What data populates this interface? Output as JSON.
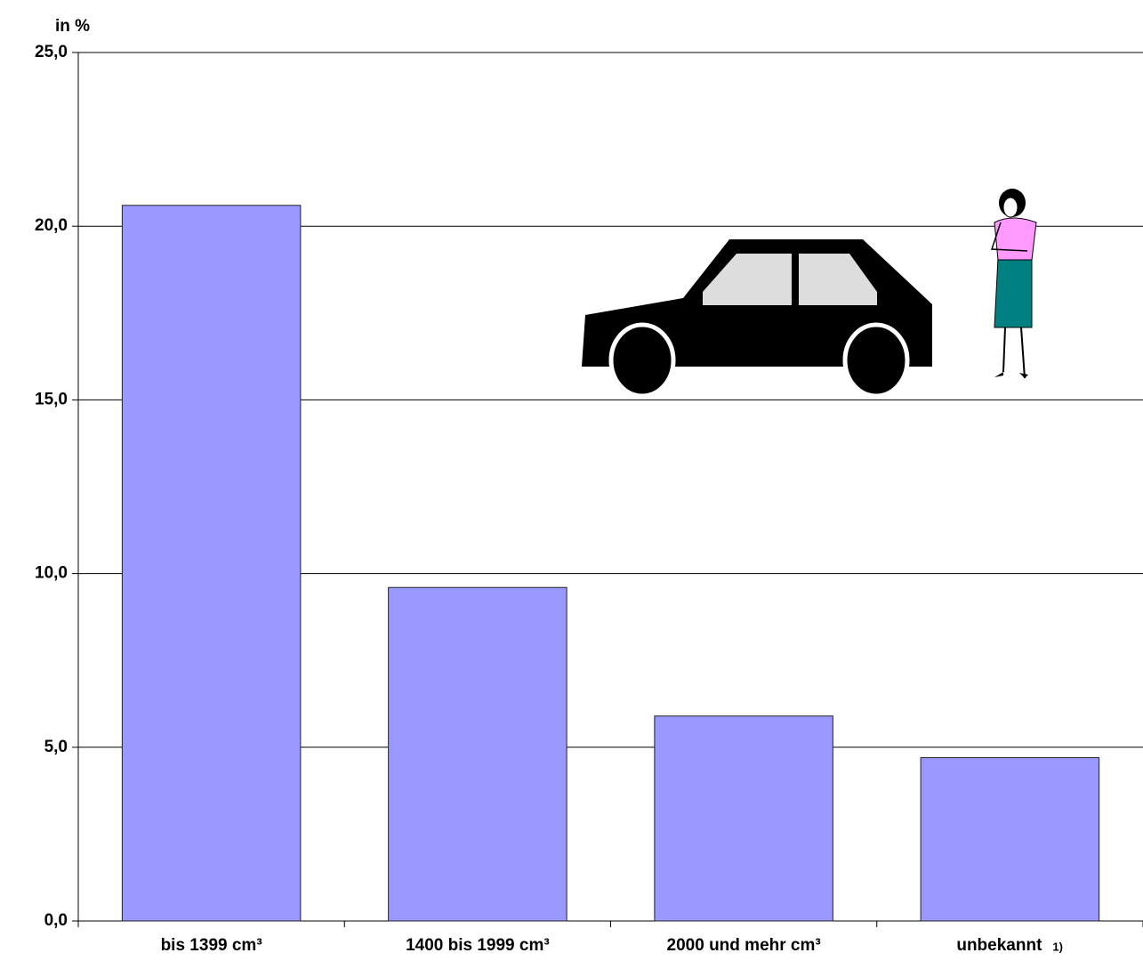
{
  "chart_data": {
    "type": "bar",
    "y_label": "in %",
    "categories": [
      "bis 1399 cm³",
      "1400 bis 1999 cm³",
      "2000 und mehr cm³",
      "unbekannt"
    ],
    "category_footnotes": [
      null,
      null,
      null,
      "1)"
    ],
    "values": [
      20.6,
      9.6,
      5.9,
      4.7
    ],
    "color": "#9999ff",
    "ylim": [
      0,
      25
    ],
    "yticks": [
      {
        "value": 0,
        "label": "0,0"
      },
      {
        "value": 5,
        "label": "5,0"
      },
      {
        "value": 10,
        "label": "10,0"
      },
      {
        "value": 15,
        "label": "15,0"
      },
      {
        "value": 20,
        "label": "20,0"
      },
      {
        "value": 25,
        "label": "25,0"
      }
    ],
    "grid": true
  }
}
